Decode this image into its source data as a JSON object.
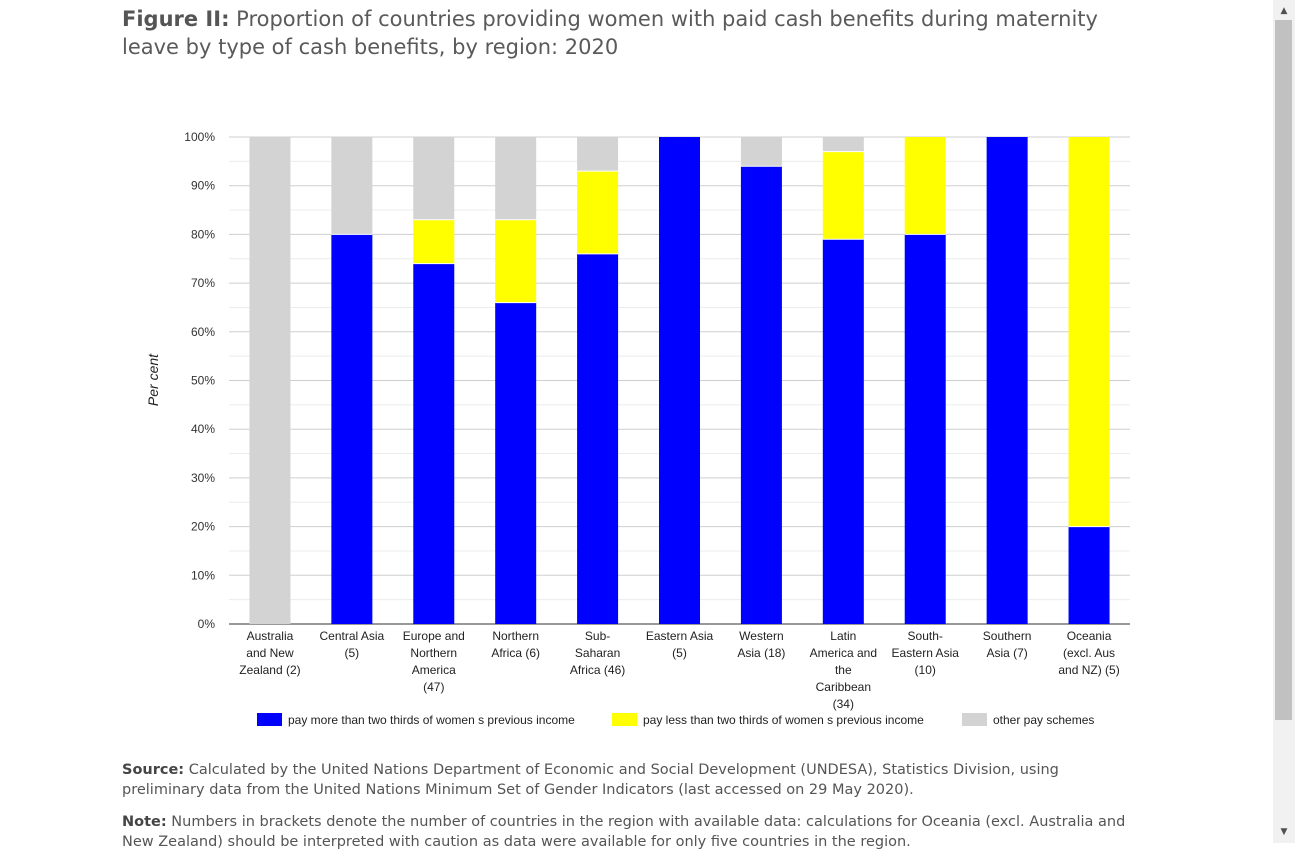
{
  "figure": {
    "label": "Figure II:",
    "title": "Proportion of countries providing women with paid cash benefits during maternity leave by type of cash benefits, by region: 2020"
  },
  "source": {
    "label": "Source:",
    "text": "Calculated by the United Nations Department of Economic and Social Development (UNDESA), Statistics Division, using preliminary data from the United Nations Minimum Set of Gender Indicators (last accessed on 29 May 2020)."
  },
  "note": {
    "label": "Note:",
    "text": "Numbers in brackets denote the number of countries in the region with available data: calculations for Oceania (excl. Australia and New Zealand) should be interpreted with caution as data were available for only five countries in the region."
  },
  "scrollbar": {
    "up_icon": "triangle-up",
    "down_icon": "triangle-down"
  },
  "chart_data": {
    "type": "bar",
    "stacked": true,
    "ylabel": "Per cent",
    "xlabel": "",
    "ylim": [
      0,
      100
    ],
    "yticks": [
      "0%",
      "10%",
      "20%",
      "30%",
      "40%",
      "50%",
      "60%",
      "70%",
      "80%",
      "90%",
      "100%"
    ],
    "grid": true,
    "legend_position": "bottom",
    "categories": [
      [
        "Australia",
        "and New",
        "Zealand (2)"
      ],
      [
        "Central Asia",
        "(5)"
      ],
      [
        "Europe and",
        "Northern",
        "America",
        "(47)"
      ],
      [
        "Northern",
        "Africa (6)"
      ],
      [
        "Sub-",
        "Saharan",
        "Africa (46)"
      ],
      [
        "Eastern Asia",
        "(5)"
      ],
      [
        "Western",
        "Asia (18)"
      ],
      [
        "Latin",
        "America and",
        "the",
        "Caribbean",
        "(34)"
      ],
      [
        "South-",
        "Eastern Asia",
        "(10)"
      ],
      [
        "Southern",
        "Asia (7)"
      ],
      [
        "Oceania",
        "(excl. Aus",
        "and NZ) (5)"
      ]
    ],
    "series": [
      {
        "name": "pay more than two thirds of women s previous income",
        "color": "#0000ff",
        "values": [
          0,
          80,
          74,
          66,
          76,
          100,
          94,
          79,
          80,
          100,
          20
        ]
      },
      {
        "name": "pay less than two thirds of women s previous income",
        "color": "#ffff00",
        "values": [
          0,
          0,
          9,
          17,
          17,
          0,
          0,
          18,
          20,
          0,
          80
        ]
      },
      {
        "name": "other pay schemes",
        "color": "#d3d3d3",
        "values": [
          100,
          20,
          17,
          17,
          7,
          0,
          6,
          3,
          0,
          0,
          0
        ]
      }
    ]
  }
}
